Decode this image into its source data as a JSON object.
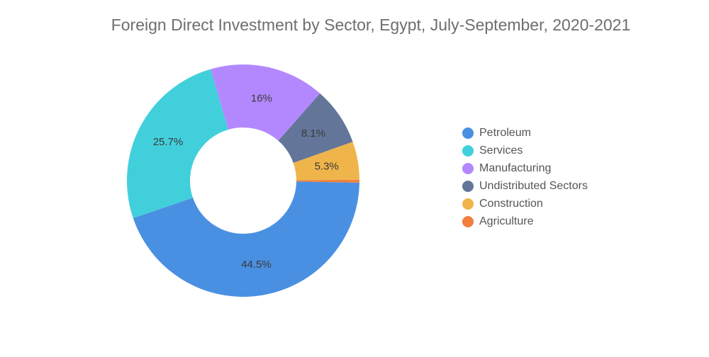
{
  "chart_data": {
    "type": "pie",
    "title": "Foreign Direct Investment by Sector, Egypt, July-September, 2020-2021",
    "donut": true,
    "legend_position": "right",
    "slices": [
      {
        "name": "Petroleum",
        "value": 44.5,
        "label": "44.5%",
        "color": "#4a90e2"
      },
      {
        "name": "Services",
        "value": 25.7,
        "label": "25.7%",
        "color": "#41d0db"
      },
      {
        "name": "Manufacturing",
        "value": 16.0,
        "label": "16%",
        "color": "#b388ff"
      },
      {
        "name": "Undistributed Sectors",
        "value": 8.1,
        "label": "8.1%",
        "color": "#637599"
      },
      {
        "name": "Construction",
        "value": 5.3,
        "label": "5.3%",
        "color": "#efb54b"
      },
      {
        "name": "Agriculture",
        "value": 0.4,
        "label": "",
        "color": "#f0803c"
      }
    ]
  }
}
